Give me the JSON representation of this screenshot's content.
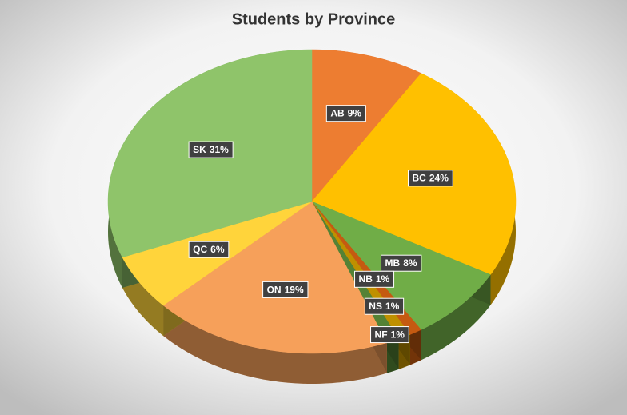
{
  "chart_data": {
    "type": "pie",
    "title": "Students by Province",
    "categories": [
      "AB",
      "BC",
      "MB",
      "NB",
      "NS",
      "NF",
      "ON",
      "QC",
      "SK"
    ],
    "values": [
      9,
      24,
      8,
      1,
      1,
      1,
      19,
      6,
      31
    ],
    "value_labels": [
      "9%",
      "24%",
      "8%",
      "1%",
      "1%",
      "1%",
      "19%",
      "6%",
      "31%"
    ],
    "colors": [
      "#ed7d31",
      "#ffc000",
      "#70ad47",
      "#c55a11",
      "#bf9000",
      "#548235",
      "#f6a05a",
      "#ffd43b",
      "#8fc46a"
    ]
  }
}
